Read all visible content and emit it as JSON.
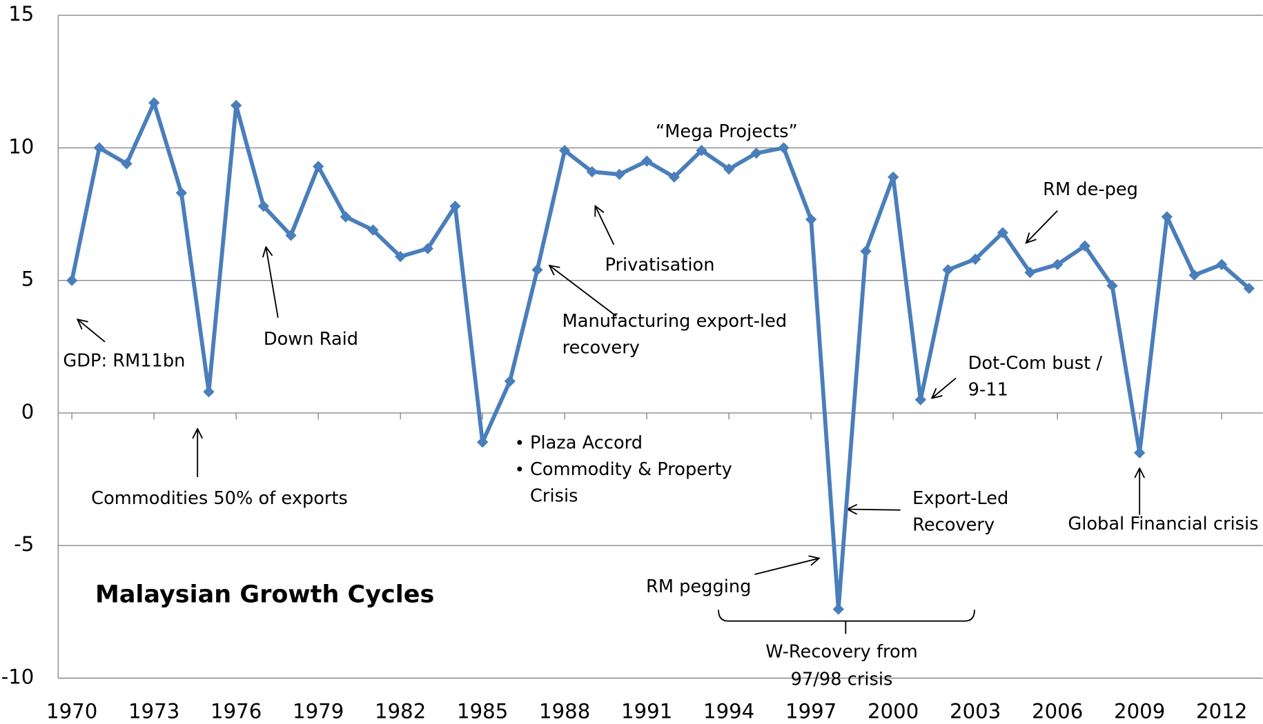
{
  "chart_data": {
    "type": "line",
    "title": "Malaysian Growth Cycles",
    "color": "#4a7ebb",
    "grid": true,
    "x": [
      1970,
      1971,
      1972,
      1973,
      1974,
      1975,
      1976,
      1977,
      1978,
      1979,
      1980,
      1981,
      1982,
      1983,
      1984,
      1985,
      1986,
      1987,
      1988,
      1989,
      1990,
      1991,
      1992,
      1993,
      1994,
      1995,
      1996,
      1997,
      1998,
      1999,
      2000,
      2001,
      2002,
      2003,
      2004,
      2005,
      2006,
      2007,
      2008,
      2009,
      2010,
      2011,
      2012,
      2013
    ],
    "values": [
      5.0,
      10.0,
      9.4,
      11.7,
      8.3,
      0.8,
      11.6,
      7.8,
      6.7,
      9.3,
      7.4,
      6.9,
      5.9,
      6.2,
      7.8,
      -1.1,
      1.2,
      5.4,
      9.9,
      9.1,
      9.0,
      9.5,
      8.9,
      9.9,
      9.2,
      9.8,
      10.0,
      7.3,
      -7.4,
      6.1,
      8.9,
      0.5,
      5.4,
      5.8,
      6.8,
      5.3,
      5.6,
      6.3,
      4.8,
      -1.5,
      7.4,
      5.2,
      5.6,
      4.7
    ],
    "xlim": [
      1969.5,
      2013.5
    ],
    "xticks": [
      1970,
      1973,
      1976,
      1979,
      1982,
      1985,
      1988,
      1991,
      1994,
      1997,
      2000,
      2003,
      2006,
      2009,
      2012
    ],
    "ylim": [
      -10,
      15
    ],
    "yticks": [
      -10,
      -5,
      0,
      5,
      10,
      15
    ],
    "annotations": [
      {
        "lines": [
          "GDP: RM11bn"
        ]
      },
      {
        "lines": [
          "Commodities 50% of exports"
        ]
      },
      {
        "lines": [
          "Down Raid"
        ]
      },
      {
        "lines": [
          "Privatisation"
        ]
      },
      {
        "lines": [
          "“Mega Projects”"
        ]
      },
      {
        "lines": [
          "Manufacturing export-led",
          "recovery"
        ]
      },
      {
        "lines": [
          "Plaza Accord",
          "Commodity & Property",
          "Crisis"
        ]
      },
      {
        "lines": [
          "RM de-peg"
        ]
      },
      {
        "lines": [
          "Dot-Com bust /",
          "9-11"
        ]
      },
      {
        "lines": [
          "Export-Led",
          "Recovery"
        ]
      },
      {
        "lines": [
          "Global Financial crisis"
        ]
      },
      {
        "lines": [
          "RM pegging"
        ]
      },
      {
        "lines": [
          "W-Recovery from",
          "97/98 crisis"
        ]
      }
    ]
  }
}
